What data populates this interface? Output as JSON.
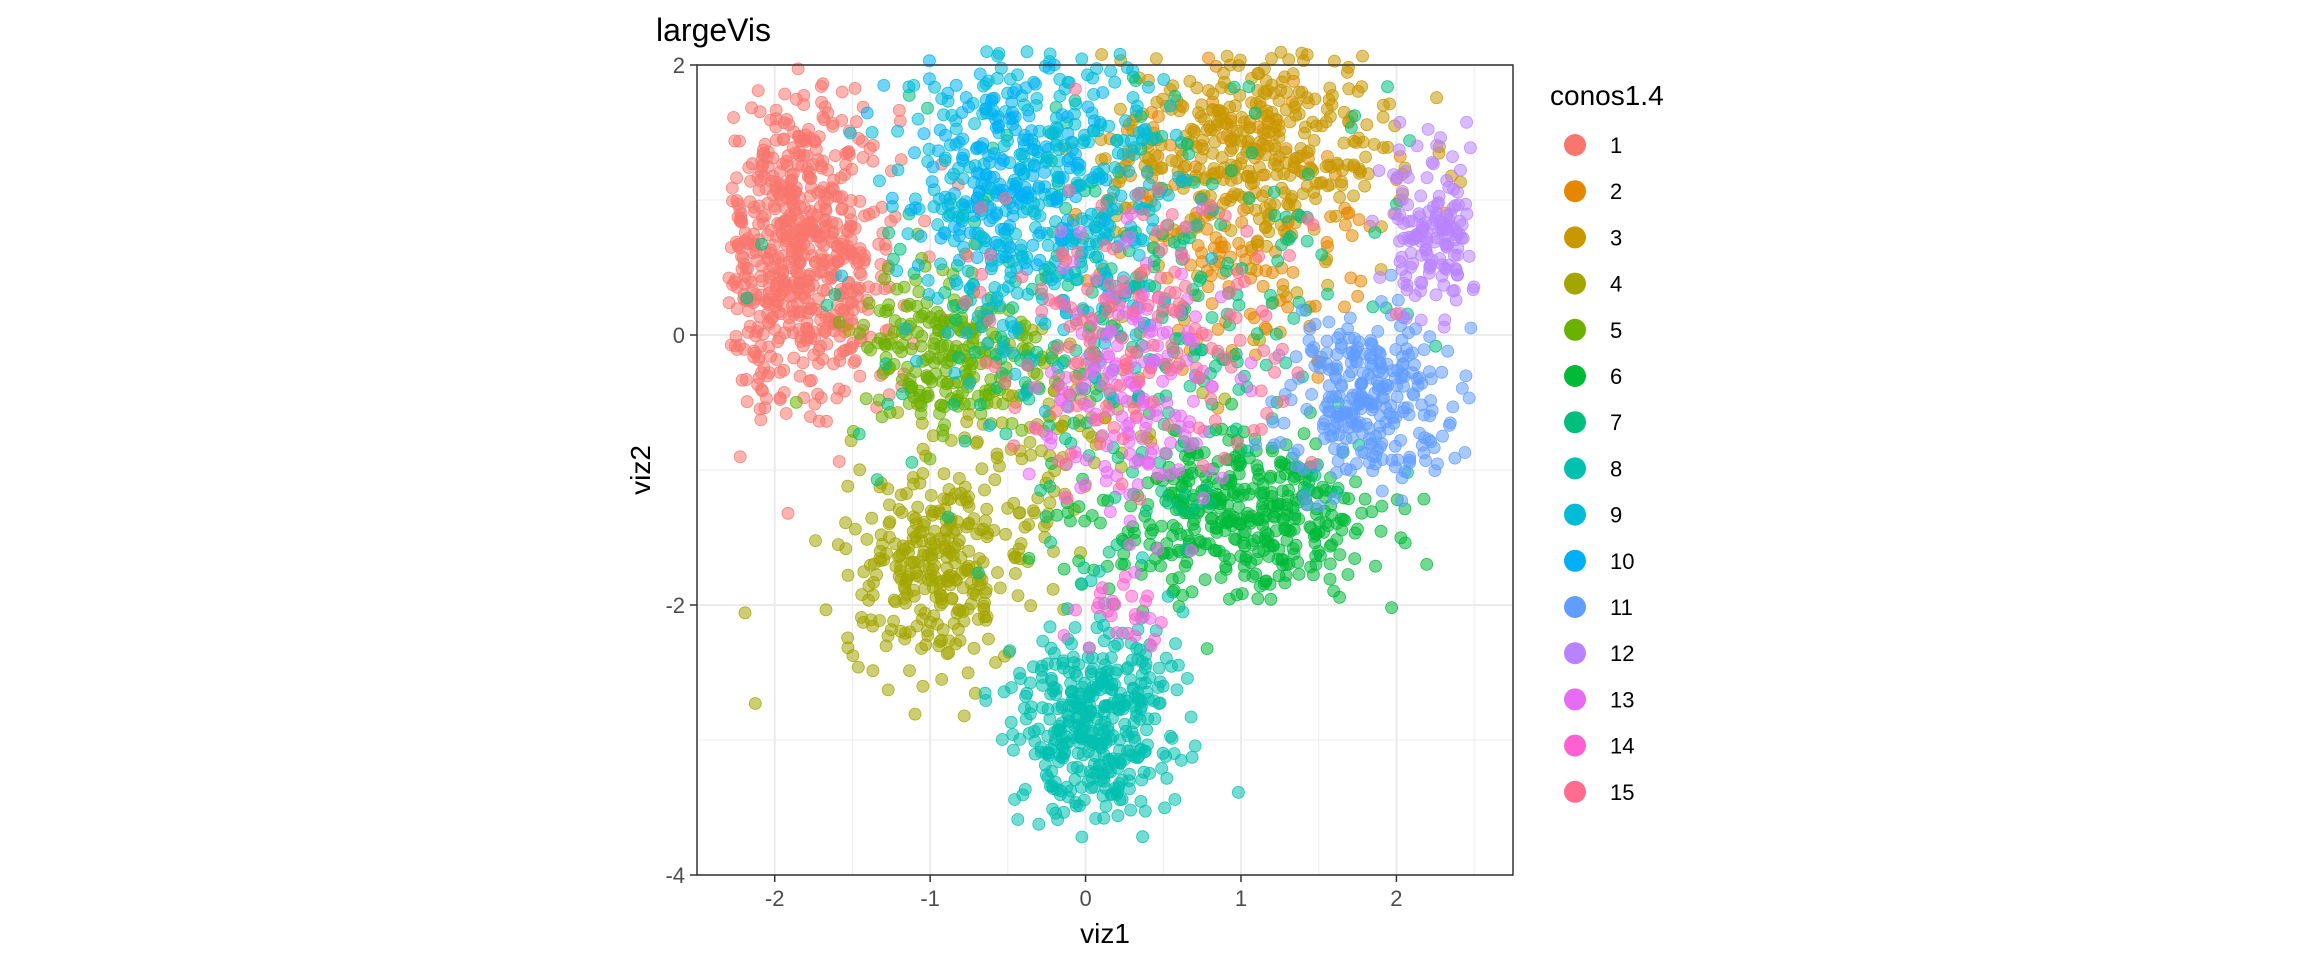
{
  "chart_data": {
    "type": "scatter",
    "title": "largeVis",
    "xlabel": "viz1",
    "ylabel": "viz2",
    "xlim": [
      -2.5,
      2.75
    ],
    "ylim": [
      -4.0,
      2.0
    ],
    "x_ticks": [
      -2,
      -1,
      0,
      1,
      2
    ],
    "y_ticks": [
      -4,
      -2,
      0,
      2
    ],
    "x_tick_labels": [
      "-2",
      "-1",
      "0",
      "1",
      "2"
    ],
    "y_tick_labels": [
      "-4",
      "-2",
      "0",
      "2"
    ],
    "grid": true,
    "point_opacity": 0.55,
    "legend": {
      "title": "conos1.4",
      "placement": "right"
    },
    "series": [
      {
        "name": "1",
        "color": "#F8766D",
        "clusters": [
          {
            "cx": -1.85,
            "cy": 0.65,
            "sx": 0.32,
            "sy": 0.6,
            "n": 700
          }
        ]
      },
      {
        "name": "2",
        "color": "#E58700",
        "clusters": [
          {
            "cx": 0.9,
            "cy": 0.75,
            "sx": 0.5,
            "sy": 0.55,
            "n": 180
          }
        ]
      },
      {
        "name": "3",
        "color": "#C99800",
        "clusters": [
          {
            "cx": 1.1,
            "cy": 1.4,
            "sx": 0.45,
            "sy": 0.4,
            "n": 400
          }
        ]
      },
      {
        "name": "4",
        "color": "#A3A500",
        "clusters": [
          {
            "cx": -0.95,
            "cy": -1.75,
            "sx": 0.3,
            "sy": 0.35,
            "n": 300
          },
          {
            "cx": -0.3,
            "cy": -0.6,
            "sx": 0.45,
            "sy": 0.4,
            "n": 120
          }
        ]
      },
      {
        "name": "5",
        "color": "#6BB100",
        "clusters": [
          {
            "cx": -0.9,
            "cy": -0.15,
            "sx": 0.3,
            "sy": 0.35,
            "n": 220
          }
        ]
      },
      {
        "name": "6",
        "color": "#00BA38",
        "clusters": [
          {
            "cx": 1.0,
            "cy": -1.35,
            "sx": 0.45,
            "sy": 0.3,
            "n": 420
          }
        ]
      },
      {
        "name": "7",
        "color": "#00BF7D",
        "clusters": [
          {
            "cx": 0.3,
            "cy": 0.2,
            "sx": 0.75,
            "sy": 0.8,
            "n": 300
          }
        ]
      },
      {
        "name": "8",
        "color": "#00C0AF",
        "clusters": [
          {
            "cx": 0.05,
            "cy": -2.85,
            "sx": 0.25,
            "sy": 0.4,
            "n": 400
          }
        ]
      },
      {
        "name": "9",
        "color": "#00BCD8",
        "clusters": [
          {
            "cx": -0.25,
            "cy": 1.0,
            "sx": 0.45,
            "sy": 0.6,
            "n": 450
          }
        ]
      },
      {
        "name": "10",
        "color": "#00B0F6",
        "clusters": [
          {
            "cx": -0.55,
            "cy": 1.3,
            "sx": 0.3,
            "sy": 0.4,
            "n": 150
          }
        ]
      },
      {
        "name": "11",
        "color": "#619CFF",
        "clusters": [
          {
            "cx": 1.85,
            "cy": -0.45,
            "sx": 0.28,
            "sy": 0.3,
            "n": 280
          }
        ]
      },
      {
        "name": "12",
        "color": "#B983FF",
        "clusters": [
          {
            "cx": 2.25,
            "cy": 0.75,
            "sx": 0.18,
            "sy": 0.3,
            "n": 160
          }
        ]
      },
      {
        "name": "13",
        "color": "#E76BF3",
        "clusters": [
          {
            "cx": 0.3,
            "cy": -0.4,
            "sx": 0.3,
            "sy": 0.5,
            "n": 180
          }
        ]
      },
      {
        "name": "14",
        "color": "#FD61D1",
        "clusters": [
          {
            "cx": 0.2,
            "cy": -2.1,
            "sx": 0.12,
            "sy": 0.15,
            "n": 25
          }
        ]
      },
      {
        "name": "15",
        "color": "#FF6C91",
        "clusters": [
          {
            "cx": 0.3,
            "cy": 0.1,
            "sx": 0.55,
            "sy": 0.55,
            "n": 150
          }
        ]
      }
    ]
  }
}
